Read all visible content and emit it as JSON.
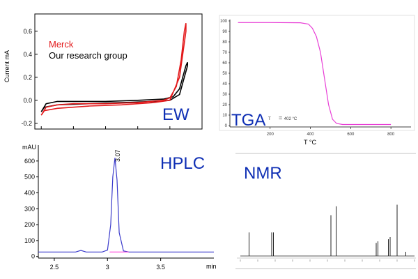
{
  "colors": {
    "red": "#e31a1c",
    "black": "#000000",
    "magenta": "#e83ed6",
    "blue": "#3a3acb",
    "pink": "#ff2fd6",
    "label": "#0f2fb4"
  },
  "chart_data": [
    {
      "type": "line",
      "label": "EW",
      "ylabel": "Current mA",
      "ylim": [
        -0.25,
        0.75
      ],
      "xlim": [
        -0.2,
        5.0
      ],
      "ytick_labels": [
        "-0.2",
        "0.0",
        "0.2",
        "0.4",
        "0.6"
      ],
      "yticks": [
        -0.2,
        0.0,
        0.2,
        0.4,
        0.6
      ],
      "xticks": [
        0,
        1,
        2,
        3,
        4,
        5
      ],
      "series": [
        {
          "name": "Merck",
          "color": "#e31a1c",
          "x": [
            0.0,
            0.15,
            0.5,
            1.0,
            2.0,
            3.0,
            3.8,
            4.0,
            4.2,
            4.35,
            4.45,
            4.5,
            4.5,
            4.3,
            4.0,
            3.5,
            2.5,
            1.5,
            0.5,
            0.1,
            0.0
          ],
          "y": [
            -0.13,
            -0.06,
            -0.04,
            -0.03,
            -0.03,
            -0.02,
            0.0,
            0.02,
            0.12,
            0.35,
            0.6,
            0.67,
            0.6,
            0.2,
            0.0,
            -0.02,
            -0.04,
            -0.05,
            -0.07,
            -0.09,
            -0.13
          ]
        },
        {
          "name": "Our research group",
          "color": "#000000",
          "x": [
            0.0,
            0.15,
            0.5,
            1.0,
            2.0,
            3.0,
            3.8,
            4.1,
            4.3,
            4.5,
            4.55,
            4.55,
            4.3,
            4.0,
            3.5,
            2.5,
            1.5,
            0.5,
            0.1,
            0.0
          ],
          "y": [
            -0.1,
            -0.03,
            -0.01,
            -0.01,
            -0.01,
            0.0,
            0.01,
            0.03,
            0.1,
            0.3,
            0.33,
            0.3,
            0.05,
            0.0,
            -0.01,
            -0.02,
            -0.03,
            -0.04,
            -0.06,
            -0.1
          ]
        }
      ]
    },
    {
      "type": "line",
      "label": "TGA",
      "xlabel": "T  °C",
      "annotation": "402 °C",
      "annotation_prefix": "T",
      "xlim": [
        0,
        900
      ],
      "ylim": [
        0,
        100
      ],
      "xtick_labels": [
        "200",
        "400",
        "600",
        "800"
      ],
      "xticks": [
        200,
        400,
        600,
        800
      ],
      "ytick_labels": [
        "0",
        "10",
        "20",
        "30",
        "40",
        "50",
        "60",
        "70",
        "80",
        "90",
        "100"
      ],
      "yticks": [
        0,
        10,
        20,
        30,
        40,
        50,
        60,
        70,
        80,
        90,
        100
      ],
      "series": [
        {
          "name": "",
          "color": "#e83ed6",
          "x": [
            40,
            200,
            350,
            390,
            410,
            430,
            450,
            470,
            490,
            510,
            530,
            560,
            600,
            650,
            700,
            760,
            800
          ],
          "y": [
            98.5,
            98.5,
            98.3,
            97,
            93,
            85,
            70,
            45,
            20,
            6,
            2,
            1,
            1,
            1,
            1,
            1,
            1
          ]
        }
      ]
    },
    {
      "type": "line",
      "label": "HPLC",
      "ylabel": "mAU",
      "xlim": [
        2.35,
        4.0
      ],
      "ylim": [
        -10,
        700
      ],
      "xtick_labels": [
        "2.5",
        "3",
        "3.5"
      ],
      "xticks": [
        2.5,
        3.0,
        3.5
      ],
      "ytick_labels": [
        "0",
        "100",
        "200",
        "300",
        "400",
        "500",
        "600"
      ],
      "yticks": [
        0,
        100,
        200,
        300,
        400,
        500,
        600
      ],
      "xunit": "min",
      "peak_label": "3.07",
      "series": [
        {
          "name": "",
          "color": "#3a3acb",
          "x": [
            2.35,
            2.7,
            2.75,
            2.8,
            2.95,
            3.0,
            3.03,
            3.05,
            3.07,
            3.09,
            3.11,
            3.15,
            3.2,
            4.0
          ],
          "y": [
            28,
            28,
            38,
            28,
            28,
            40,
            200,
            500,
            620,
            480,
            150,
            35,
            28,
            28
          ]
        },
        {
          "name": "",
          "color": "#ff2fd6",
          "x": [
            3.02,
            3.2
          ],
          "y": [
            28,
            28
          ]
        }
      ]
    },
    {
      "type": "line",
      "label": "NMR",
      "peaks": [
        {
          "x": 0.05,
          "h": 0.45
        },
        {
          "x": 0.18,
          "h": 0.45
        },
        {
          "x": 0.19,
          "h": 0.45
        },
        {
          "x": 0.52,
          "h": 0.78
        },
        {
          "x": 0.55,
          "h": 0.95
        },
        {
          "x": 0.78,
          "h": 0.25
        },
        {
          "x": 0.79,
          "h": 0.28
        },
        {
          "x": 0.85,
          "h": 0.32
        },
        {
          "x": 0.86,
          "h": 0.36
        },
        {
          "x": 0.9,
          "h": 0.98
        },
        {
          "x": 0.95,
          "h": 0.08
        }
      ]
    }
  ],
  "legend": {
    "merck": "Merck",
    "ours": "Our research group"
  }
}
